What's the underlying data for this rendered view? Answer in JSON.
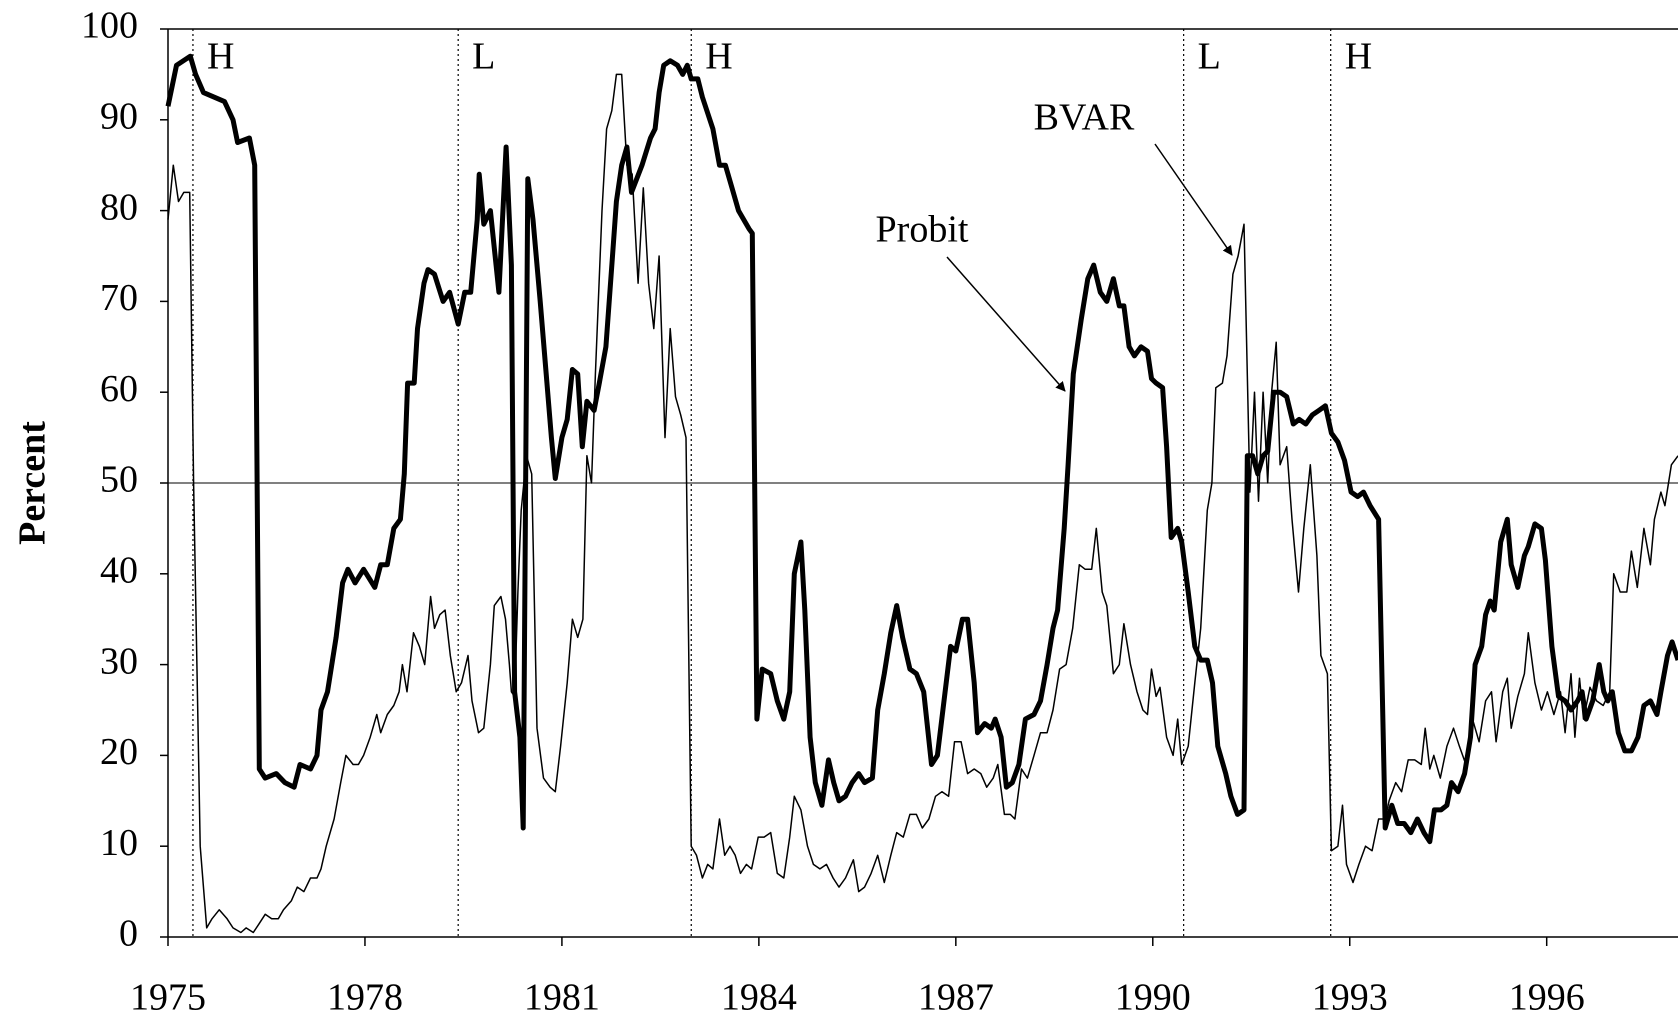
{
  "chart_data": {
    "type": "line",
    "ylabel": "Percent",
    "xlim": [
      1975,
      1998
    ],
    "xticks": [
      1975,
      1978,
      1981,
      1984,
      1987,
      1990,
      1993,
      1996
    ],
    "ylim": [
      0,
      100
    ],
    "yticks": [
      0,
      10,
      20,
      30,
      40,
      50,
      60,
      70,
      80,
      90,
      100
    ],
    "reference_line": 50,
    "regimes": [
      {
        "x": 1975.38,
        "label": "H"
      },
      {
        "x": 1979.42,
        "label": "L"
      },
      {
        "x": 1982.97,
        "label": "H"
      },
      {
        "x": 1990.47,
        "label": "L"
      },
      {
        "x": 1992.71,
        "label": "H"
      }
    ],
    "series": [
      {
        "name": "Probit",
        "color": "#000000",
        "width": 5,
        "x": [
          1975.0,
          1975.13,
          1975.34,
          1975.42,
          1975.54,
          1975.7,
          1975.86,
          1975.99,
          1976.06,
          1976.24,
          1976.32,
          1976.39,
          1976.48,
          1976.65,
          1976.78,
          1976.92,
          1977.01,
          1977.17,
          1977.27,
          1977.33,
          1977.43,
          1977.56,
          1977.66,
          1977.74,
          1977.85,
          1977.98,
          1978.15,
          1978.24,
          1978.34,
          1978.44,
          1978.54,
          1978.6,
          1978.65,
          1978.75,
          1978.8,
          1978.9,
          1978.96,
          1979.06,
          1979.19,
          1979.29,
          1979.42,
          1979.52,
          1979.61,
          1979.71,
          1979.74,
          1979.81,
          1979.91,
          1980.04,
          1980.15,
          1980.23,
          1980.28,
          1980.36,
          1980.41,
          1980.48,
          1980.56,
          1980.67,
          1980.76,
          1980.84,
          1980.9,
          1981.0,
          1981.08,
          1981.16,
          1981.24,
          1981.31,
          1981.38,
          1981.49,
          1981.57,
          1981.67,
          1981.77,
          1981.83,
          1981.91,
          1981.99,
          1982.06,
          1982.22,
          1982.35,
          1982.42,
          1982.48,
          1982.55,
          1982.65,
          1982.76,
          1982.84,
          1982.91,
          1982.97,
          1983.07,
          1983.14,
          1983.3,
          1983.4,
          1983.49,
          1983.59,
          1983.69,
          1983.85,
          1983.9,
          1983.97,
          1984.05,
          1984.18,
          1984.28,
          1984.38,
          1984.47,
          1984.54,
          1984.64,
          1984.7,
          1984.78,
          1984.86,
          1984.96,
          1985.06,
          1985.14,
          1985.22,
          1985.32,
          1985.42,
          1985.52,
          1985.61,
          1985.73,
          1985.81,
          1985.91,
          1986.01,
          1986.1,
          1986.19,
          1986.3,
          1986.4,
          1986.51,
          1986.63,
          1986.72,
          1986.82,
          1986.92,
          1987.0,
          1987.1,
          1987.18,
          1987.28,
          1987.33,
          1987.44,
          1987.54,
          1987.6,
          1987.69,
          1987.77,
          1987.86,
          1987.96,
          1988.06,
          1988.19,
          1988.29,
          1988.39,
          1988.48,
          1988.55,
          1988.65,
          1988.71,
          1988.79,
          1988.91,
          1989.01,
          1989.1,
          1989.2,
          1989.3,
          1989.4,
          1989.49,
          1989.56,
          1989.64,
          1989.72,
          1989.82,
          1989.92,
          1989.98,
          1990.05,
          1990.15,
          1990.21,
          1990.28,
          1990.38,
          1990.44,
          1990.54,
          1990.64,
          1990.73,
          1990.83,
          1990.91,
          1990.99,
          1991.11,
          1991.19,
          1991.29,
          1991.39,
          1991.44,
          1991.52,
          1991.6,
          1991.68,
          1991.75,
          1991.84,
          1991.94,
          1992.04,
          1992.14,
          1992.23,
          1992.33,
          1992.43,
          1992.53,
          1992.63,
          1992.72,
          1992.82,
          1992.92,
          1993.02,
          1993.12,
          1993.21,
          1993.31,
          1993.44,
          1993.54,
          1993.64,
          1993.73,
          1993.83,
          1993.93,
          1994.03,
          1994.13,
          1994.22,
          1994.29,
          1994.39,
          1994.48,
          1994.55,
          1994.65,
          1994.75,
          1994.84,
          1994.91,
          1995.01,
          1995.07,
          1995.14,
          1995.2,
          1995.3,
          1995.4,
          1995.46,
          1995.56,
          1995.66,
          1995.72,
          1995.82,
          1995.92,
          1995.98,
          1996.08,
          1996.18,
          1996.28,
          1996.37,
          1996.47,
          1996.54,
          1996.6,
          1996.7,
          1996.8,
          1996.87,
          1996.93,
          1997.0,
          1997.09,
          1997.19,
          1997.29,
          1997.39,
          1997.48,
          1997.58,
          1997.68,
          1997.74,
          1997.84,
          1997.91,
          1998.0
        ],
        "values": [
          91.5,
          96,
          97,
          95,
          93,
          92.5,
          92,
          90,
          87.5,
          88,
          85,
          18.5,
          17.5,
          18,
          17,
          16.5,
          19,
          18.5,
          20,
          25,
          27,
          33,
          39,
          40.5,
          39,
          40.5,
          38.5,
          41,
          41,
          45,
          46,
          51,
          61,
          61,
          67,
          72,
          73.5,
          73,
          70,
          71,
          67.5,
          71,
          71,
          79,
          84,
          78.5,
          80,
          71,
          87,
          74,
          27,
          22,
          12,
          83.5,
          79,
          70,
          62,
          55,
          50.5,
          55,
          57,
          62.5,
          62,
          54,
          59,
          58,
          61,
          65,
          75,
          81,
          85,
          87,
          82,
          85,
          88,
          89,
          93,
          96,
          96.5,
          96,
          95,
          96,
          94.5,
          94.5,
          92.5,
          89,
          85,
          85,
          82.5,
          80,
          78,
          77.5,
          24,
          29.5,
          29,
          26,
          24,
          27,
          40,
          43.5,
          36,
          22,
          17,
          14.5,
          19.5,
          17,
          15,
          15.5,
          17,
          18,
          17,
          17.5,
          25,
          29,
          33.5,
          36.5,
          33,
          29.5,
          29,
          27,
          19,
          20,
          26,
          32,
          31.5,
          35,
          35,
          28,
          22.5,
          23.5,
          23,
          24,
          22,
          16.5,
          17,
          19,
          24,
          24.5,
          26,
          30,
          34,
          36,
          45,
          52,
          62,
          68,
          72.5,
          74,
          71,
          70,
          72.5,
          69.5,
          69.5,
          65,
          64,
          65,
          64.5,
          61.5,
          61,
          60.5,
          54,
          44,
          45,
          43.5,
          38,
          32,
          30.5,
          30.5,
          28,
          21,
          18,
          15.5,
          13.5,
          14,
          53,
          53,
          51,
          53,
          53.5,
          60,
          60,
          59.5,
          56.5,
          57,
          56.5,
          57.5,
          58,
          58.5,
          55.5,
          54.5,
          52.5,
          49,
          48.5,
          49,
          47.5,
          46,
          12,
          14.5,
          12.5,
          12.5,
          11.5,
          13,
          11.5,
          10.5,
          14,
          14,
          14.5,
          17,
          16,
          18,
          22,
          30,
          32,
          35.5,
          37,
          36,
          43.5,
          46,
          41,
          38.5,
          42,
          43,
          45.5,
          45,
          41.5,
          32,
          26.5,
          26,
          25,
          26,
          27,
          24,
          26,
          30,
          27,
          26,
          27,
          22.5,
          20.5,
          20.5,
          22,
          25.5,
          26,
          24.5,
          27,
          31,
          32.5,
          30.5
        ]
      },
      {
        "name": "BVAR",
        "color": "#000000",
        "width": 1.5,
        "x": [
          1975.0,
          1975.08,
          1975.16,
          1975.24,
          1975.33,
          1975.39,
          1975.49,
          1975.59,
          1975.67,
          1975.78,
          1975.9,
          1975.99,
          1976.11,
          1976.19,
          1976.3,
          1976.39,
          1976.48,
          1976.58,
          1976.68,
          1976.76,
          1976.88,
          1976.97,
          1977.07,
          1977.17,
          1977.27,
          1977.33,
          1977.41,
          1977.53,
          1977.63,
          1977.71,
          1977.82,
          1977.9,
          1977.98,
          1978.08,
          1978.18,
          1978.24,
          1978.34,
          1978.44,
          1978.52,
          1978.57,
          1978.64,
          1978.74,
          1978.83,
          1978.91,
          1979.0,
          1979.06,
          1979.14,
          1979.22,
          1979.3,
          1979.39,
          1979.47,
          1979.57,
          1979.63,
          1979.73,
          1979.81,
          1979.91,
          1979.97,
          1980.07,
          1980.14,
          1980.2,
          1980.23,
          1980.28,
          1980.33,
          1980.38,
          1980.46,
          1980.54,
          1980.62,
          1980.72,
          1980.82,
          1980.9,
          1980.98,
          1981.08,
          1981.16,
          1981.24,
          1981.32,
          1981.38,
          1981.45,
          1981.51,
          1981.61,
          1981.68,
          1981.76,
          1981.83,
          1981.91,
          1981.99,
          1982.07,
          1982.16,
          1982.24,
          1982.32,
          1982.4,
          1982.48,
          1982.57,
          1982.65,
          1982.73,
          1982.81,
          1982.89,
          1982.97,
          1983.05,
          1983.14,
          1983.22,
          1983.3,
          1983.4,
          1983.48,
          1983.56,
          1983.64,
          1983.72,
          1983.81,
          1983.89,
          1983.99,
          1984.08,
          1984.18,
          1984.28,
          1984.38,
          1984.47,
          1984.54,
          1984.64,
          1984.74,
          1984.83,
          1984.93,
          1985.03,
          1985.13,
          1985.22,
          1985.32,
          1985.44,
          1985.52,
          1985.61,
          1985.71,
          1985.81,
          1985.91,
          1986.01,
          1986.1,
          1986.2,
          1986.3,
          1986.4,
          1986.49,
          1986.59,
          1986.69,
          1986.79,
          1986.89,
          1986.98,
          1987.08,
          1987.18,
          1987.28,
          1987.38,
          1987.47,
          1987.57,
          1987.64,
          1987.74,
          1987.83,
          1987.9,
          1988.0,
          1988.09,
          1988.19,
          1988.29,
          1988.39,
          1988.48,
          1988.58,
          1988.68,
          1988.78,
          1988.88,
          1988.97,
          1989.07,
          1989.14,
          1989.23,
          1989.3,
          1989.4,
          1989.49,
          1989.56,
          1989.66,
          1989.76,
          1989.85,
          1989.92,
          1989.98,
          1990.05,
          1990.11,
          1990.21,
          1990.31,
          1990.38,
          1990.44,
          1990.54,
          1990.64,
          1990.73,
          1990.83,
          1990.9,
          1990.96,
          1991.06,
          1991.13,
          1991.22,
          1991.3,
          1991.39,
          1991.48,
          1991.55,
          1991.61,
          1991.68,
          1991.75,
          1991.81,
          1991.88,
          1991.94,
          1992.04,
          1992.12,
          1992.22,
          1992.3,
          1992.4,
          1992.5,
          1992.56,
          1992.66,
          1992.72,
          1992.82,
          1992.89,
          1992.95,
          1993.05,
          1993.14,
          1993.24,
          1993.34,
          1993.44,
          1993.54,
          1993.6,
          1993.7,
          1993.79,
          1993.89,
          1993.99,
          1994.09,
          1994.15,
          1994.22,
          1994.28,
          1994.38,
          1994.48,
          1994.58,
          1994.67,
          1994.77,
          1994.87,
          1994.97,
          1995.07,
          1995.16,
          1995.23,
          1995.33,
          1995.4,
          1995.46,
          1995.56,
          1995.66,
          1995.72,
          1995.82,
          1995.92,
          1996.01,
          1996.11,
          1996.21,
          1996.28,
          1996.37,
          1996.43,
          1996.5,
          1996.56,
          1996.66,
          1996.76,
          1996.86,
          1996.96,
          1997.02,
          1997.12,
          1997.22,
          1997.29,
          1997.38,
          1997.48,
          1997.58,
          1997.64,
          1997.74,
          1997.8,
          1997.9,
          1998.0
        ],
        "values": [
          79,
          85,
          81,
          82,
          82,
          50,
          10,
          1,
          2,
          3,
          2,
          1,
          0.5,
          1,
          0.5,
          1.5,
          2.5,
          2,
          2,
          3,
          4,
          5.5,
          5,
          6.5,
          6.5,
          7.5,
          10,
          13,
          17,
          20,
          19,
          19,
          20,
          22,
          24.5,
          22.5,
          24.5,
          25.5,
          27,
          30,
          27,
          33.5,
          32,
          30,
          37.5,
          34,
          35.5,
          36,
          31,
          27,
          28,
          31,
          26,
          22.5,
          23,
          30,
          36.5,
          37.5,
          35,
          30,
          27,
          26.5,
          38,
          47,
          53,
          51,
          23,
          17.5,
          16.5,
          16,
          21,
          28,
          35,
          33,
          35,
          53,
          50,
          62,
          80,
          89,
          91,
          95,
          95,
          85,
          84,
          72,
          82.5,
          72,
          67,
          75,
          55,
          67,
          59.5,
          57.5,
          55,
          10,
          9,
          6.5,
          8,
          7.5,
          13,
          9,
          10,
          9,
          7,
          8,
          7.5,
          11,
          11,
          11.5,
          7,
          6.5,
          11,
          15.5,
          14,
          10,
          8,
          7.5,
          8,
          6.5,
          5.5,
          6.5,
          8.5,
          5,
          5.5,
          7,
          9,
          6,
          9,
          11.5,
          11,
          13.5,
          13.5,
          12,
          13,
          15.5,
          16,
          15.5,
          21.5,
          21.5,
          18,
          18.5,
          18,
          16.5,
          17.5,
          19,
          13.5,
          13.5,
          13,
          18.5,
          17.5,
          20,
          22.5,
          22.5,
          25,
          29.5,
          30,
          34,
          41,
          40.5,
          40.5,
          45,
          38,
          36.5,
          29,
          30,
          34.5,
          30,
          27,
          25,
          24.5,
          29.5,
          26.5,
          27.5,
          22,
          20,
          24,
          19,
          21,
          28,
          34,
          47,
          50,
          60.5,
          61,
          64,
          73,
          75,
          78.5,
          49,
          60,
          48,
          60,
          50,
          60,
          65.5,
          52,
          54,
          46,
          38,
          45,
          52,
          42,
          31,
          29,
          9.5,
          10,
          14.5,
          8,
          6,
          8,
          10,
          9.5,
          13,
          13,
          15,
          17,
          16,
          19.5,
          19.5,
          19,
          23,
          18.5,
          20,
          17.5,
          21,
          23,
          21,
          19,
          24,
          21.5,
          26,
          27,
          21.5,
          27,
          28.5,
          23,
          26.5,
          29,
          33.5,
          28,
          25,
          27,
          24.5,
          27,
          22.5,
          29,
          22,
          28.5,
          24,
          27.5,
          26,
          25.5,
          27,
          40,
          38,
          38,
          42.5,
          38.5,
          45,
          41,
          46,
          49,
          47.5,
          52,
          53
        ]
      }
    ]
  }
}
